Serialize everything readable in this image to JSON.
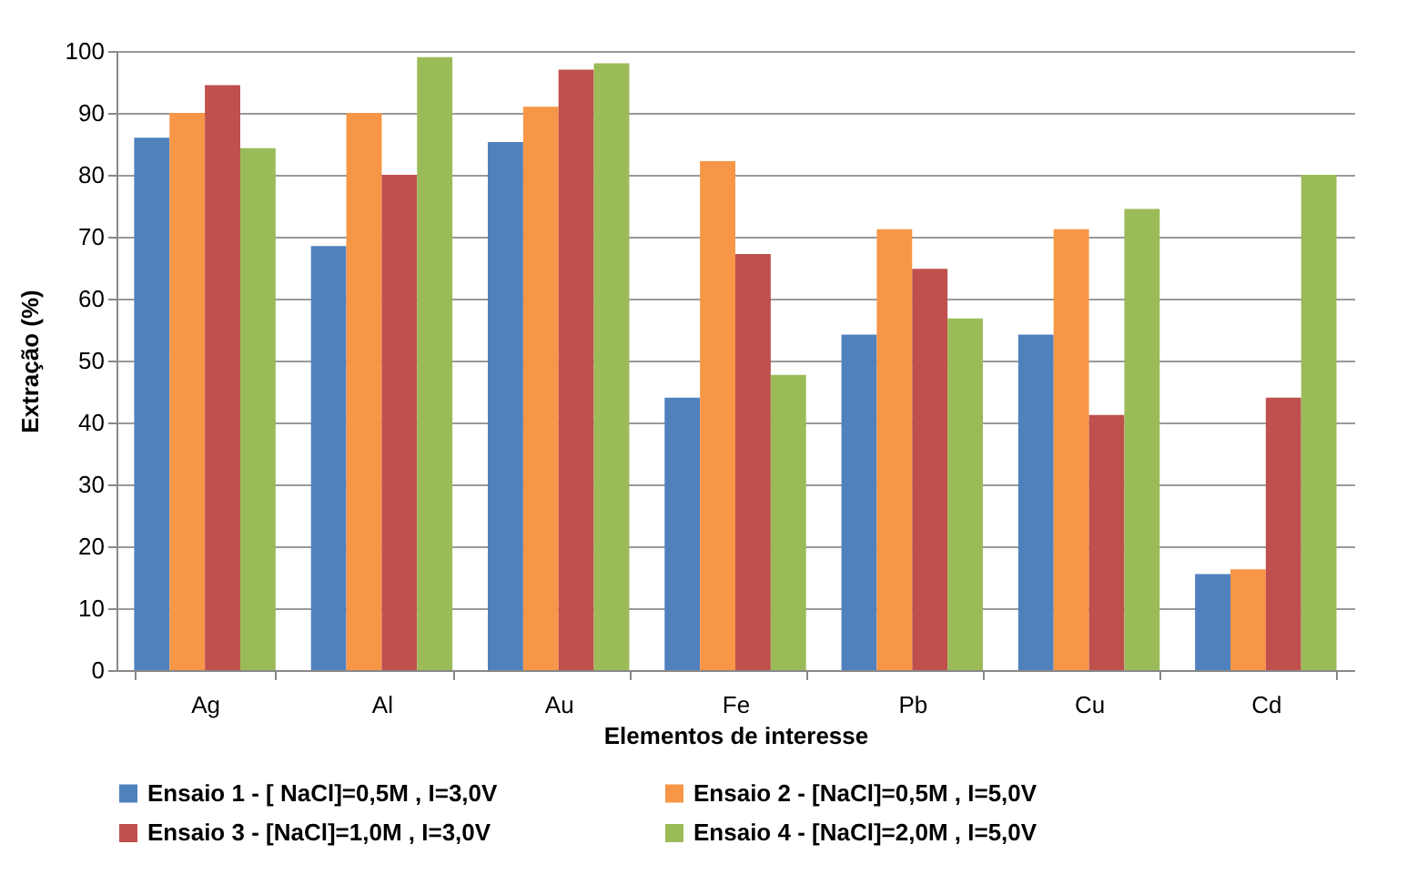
{
  "chart_data": {
    "type": "bar",
    "xlabel": "Elementos de interesse",
    "ylabel": "Extração (%)",
    "categories": [
      "Ag",
      "Al",
      "Au",
      "Fe",
      "Pb",
      "Cu",
      "Cd"
    ],
    "series": [
      {
        "name": "Ensaio 1 - [ NaCl]=0,5M , I=3,0V",
        "color": "#4f81bd",
        "values": [
          86,
          68.5,
          85.3,
          44,
          54.2,
          54.2,
          15.5
        ]
      },
      {
        "name": "Ensaio 2 - [NaCl]=0,5M , I=5,0V",
        "color": "#f79646",
        "values": [
          90,
          90,
          91,
          82.2,
          71.2,
          71.2,
          16.3
        ]
      },
      {
        "name": "Ensaio 3 - [NaCl]=1,0M , I=3,0V",
        "color": "#c0504d",
        "values": [
          94.5,
          80,
          97,
          67.2,
          64.8,
          41.2,
          44
        ]
      },
      {
        "name": "Ensaio 4 - [NaCl]=2,0M , I=5,0V",
        "color": "#9bbb59",
        "values": [
          84.3,
          99,
          98,
          47.7,
          56.8,
          74.5,
          80
        ]
      }
    ],
    "ylim": [
      0,
      100
    ],
    "yticks": [
      0,
      10,
      20,
      30,
      40,
      50,
      60,
      70,
      80,
      90,
      100
    ],
    "grid": "y",
    "legend": "bottom"
  }
}
